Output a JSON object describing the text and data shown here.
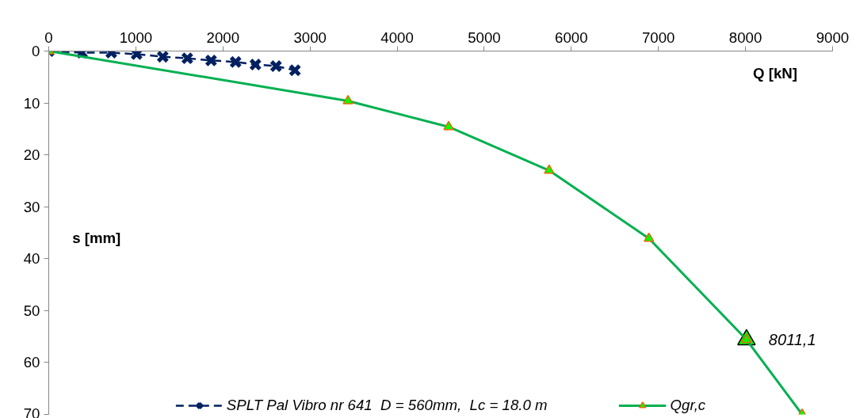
{
  "chart_data": {
    "type": "line",
    "xlabel": "Q [kN]",
    "ylabel": "s [mm]",
    "xlim": [
      0,
      9000
    ],
    "xticks": [
      0,
      1000,
      2000,
      3000,
      4000,
      5000,
      6000,
      7000,
      8000,
      9000
    ],
    "ylim": [
      70,
      0
    ],
    "yticks": [
      0,
      10,
      20,
      30,
      40,
      50,
      60,
      70
    ],
    "grid": false,
    "legend": "bottom",
    "series": [
      {
        "type": "scatter",
        "color": "#00ff00",
        "marker": "triangle",
        "x": [
          8011
        ],
        "values": [
          55.6
        ]
      },
      {
        "name": "SPLT Pal Vibro nr 641  D = 560mm,  Lc = 18.0 m",
        "color": "#002060",
        "marker": "cross",
        "line_style": "dashed",
        "x": [
          0,
          382,
          718,
          1009,
          1309,
          1591,
          1864,
          2145,
          2373,
          2609,
          2827
        ],
        "values": [
          0,
          0.3,
          0.3,
          0.6,
          1.1,
          1.4,
          1.8,
          2.1,
          2.6,
          2.9,
          3.7
        ]
      },
      {
        "name": "Qgr,c",
        "color": "#00b050",
        "marker": "triangle",
        "line_style": "solid",
        "x": [
          0,
          3436,
          4591,
          5745,
          6891,
          8011,
          8650
        ],
        "values": [
          0,
          9.6,
          14.6,
          23.0,
          36.1,
          55.6,
          70
        ]
      }
    ],
    "annotations": [
      {
        "text": "8011,1",
        "x": 8011,
        "y": 55.6
      }
    ]
  }
}
